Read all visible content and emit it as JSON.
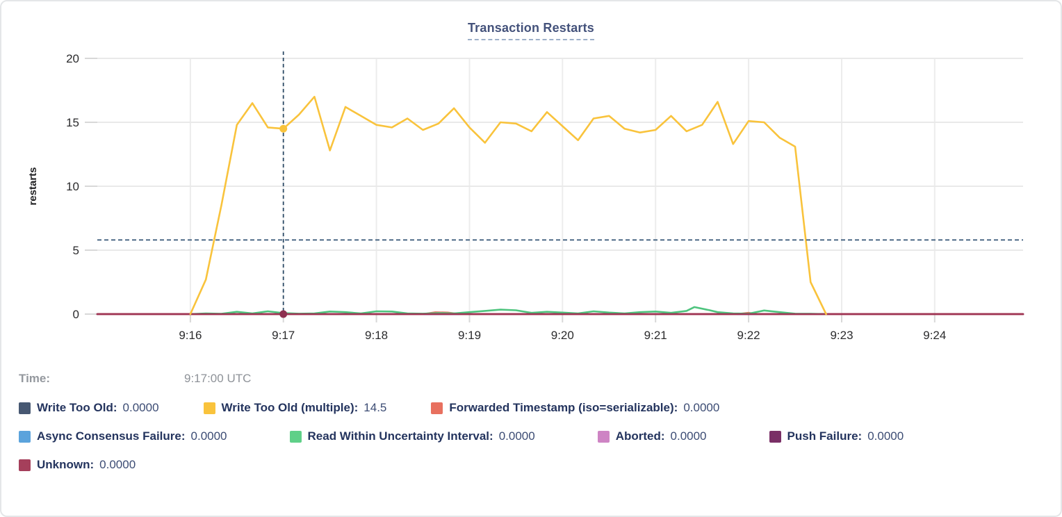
{
  "header": {
    "title": "Transaction Restarts"
  },
  "tooltip": {
    "time_label": "Time:",
    "time_value": "9:17:00 UTC"
  },
  "legend": {
    "rows": [
      [
        {
          "label": "Write Too Old:",
          "value": "0.0000",
          "color": "#475872"
        },
        {
          "label": "Write Too Old (multiple):",
          "value": "14.5",
          "color": "#F9C33C"
        },
        {
          "label": "Forwarded Timestamp (iso=serializable):",
          "value": "0.0000",
          "color": "#E8705F"
        }
      ],
      [
        {
          "label": "Async Consensus Failure:",
          "value": "0.0000",
          "color": "#5BA3DC"
        },
        {
          "label": "Read Within Uncertainty Interval:",
          "value": "0.0000",
          "color": "#5FD088"
        },
        {
          "label": "Aborted:",
          "value": "0.0000",
          "color": "#CE84C4"
        },
        {
          "label": "Push Failure:",
          "value": "0.0000",
          "color": "#7A2F66"
        }
      ],
      [
        {
          "label": "Unknown:",
          "value": "0.0000",
          "color": "#A53F5B"
        }
      ]
    ]
  },
  "chart_data": {
    "type": "line",
    "title": "Transaction Restarts",
    "xlabel": "",
    "ylabel": "restarts",
    "ylim": [
      0,
      20.5
    ],
    "yticks": [
      0,
      5,
      10,
      15,
      20
    ],
    "grid": true,
    "legend_position": "bottom",
    "x_unit": "seconds since 9:15:00 UTC",
    "x_domain_seconds": [
      0,
      597
    ],
    "xticks": [
      {
        "label": "9:16",
        "t": 60
      },
      {
        "label": "9:17",
        "t": 120
      },
      {
        "label": "9:18",
        "t": 180
      },
      {
        "label": "9:19",
        "t": 240
      },
      {
        "label": "9:20",
        "t": 300
      },
      {
        "label": "9:21",
        "t": 360
      },
      {
        "label": "9:22",
        "t": 420
      },
      {
        "label": "9:23",
        "t": 480
      },
      {
        "label": "9:24",
        "t": 540
      }
    ],
    "hover": {
      "time": "9:17:00 UTC",
      "t": 120,
      "crosshair_value": 5.8,
      "points": [
        {
          "series": "Write Too Old (multiple)",
          "value": 14.5,
          "color": "#F9C33C"
        },
        {
          "series": "Unknown",
          "value": 0,
          "color": "#8E3150"
        }
      ]
    },
    "series": [
      {
        "name": "Write Too Old",
        "color": "#475872",
        "points": [
          [
            0,
            0
          ],
          [
            597,
            0
          ]
        ]
      },
      {
        "name": "Async Consensus Failure",
        "color": "#5BA3DC",
        "points": [
          [
            0,
            0
          ],
          [
            597,
            0
          ]
        ]
      },
      {
        "name": "Aborted",
        "color": "#CE84C4",
        "points": [
          [
            0,
            0
          ],
          [
            597,
            0
          ]
        ]
      },
      {
        "name": "Push Failure",
        "color": "#7A2F66",
        "points": [
          [
            0,
            0
          ],
          [
            597,
            0
          ]
        ]
      },
      {
        "name": "Forwarded Timestamp (iso=serializable)",
        "color": "#E8705F",
        "points": [
          [
            0,
            0
          ],
          [
            210,
            0
          ],
          [
            218,
            0.14
          ],
          [
            226,
            0.12
          ],
          [
            234,
            0
          ],
          [
            412,
            0
          ],
          [
            420,
            0.1
          ],
          [
            426,
            0
          ],
          [
            597,
            0
          ]
        ]
      },
      {
        "name": "Read Within Uncertainty Interval",
        "color": "#4EC47E",
        "points": [
          [
            60,
            0
          ],
          [
            70,
            0.05
          ],
          [
            80,
            0.02
          ],
          [
            90,
            0.18
          ],
          [
            100,
            0.05
          ],
          [
            110,
            0.22
          ],
          [
            120,
            0.08
          ],
          [
            130,
            0.03
          ],
          [
            140,
            0.05
          ],
          [
            150,
            0.2
          ],
          [
            160,
            0.15
          ],
          [
            170,
            0.05
          ],
          [
            180,
            0.22
          ],
          [
            190,
            0.2
          ],
          [
            200,
            0.05
          ],
          [
            210,
            0.03
          ],
          [
            220,
            0.08
          ],
          [
            230,
            0.05
          ],
          [
            240,
            0.15
          ],
          [
            250,
            0.25
          ],
          [
            260,
            0.35
          ],
          [
            270,
            0.3
          ],
          [
            280,
            0.1
          ],
          [
            290,
            0.18
          ],
          [
            300,
            0.12
          ],
          [
            310,
            0.05
          ],
          [
            320,
            0.22
          ],
          [
            330,
            0.12
          ],
          [
            340,
            0.05
          ],
          [
            350,
            0.15
          ],
          [
            360,
            0.2
          ],
          [
            370,
            0.1
          ],
          [
            380,
            0.25
          ],
          [
            385,
            0.55
          ],
          [
            395,
            0.3
          ],
          [
            400,
            0.15
          ],
          [
            410,
            0.05
          ],
          [
            420,
            0.03
          ],
          [
            430,
            0.28
          ],
          [
            440,
            0.15
          ],
          [
            450,
            0.03
          ],
          [
            460,
            0.02
          ],
          [
            470,
            0
          ]
        ]
      },
      {
        "name": "Unknown",
        "color": "#9E3352",
        "points": [
          [
            0,
            0
          ],
          [
            597,
            0
          ]
        ]
      },
      {
        "name": "Write Too Old (multiple)",
        "color": "#F9C33C",
        "points": [
          [
            60,
            0
          ],
          [
            70,
            2.7
          ],
          [
            80,
            8.5
          ],
          [
            90,
            14.8
          ],
          [
            100,
            16.5
          ],
          [
            110,
            14.6
          ],
          [
            120,
            14.5
          ],
          [
            130,
            15.6
          ],
          [
            140,
            17.0
          ],
          [
            150,
            12.8
          ],
          [
            160,
            16.2
          ],
          [
            170,
            15.5
          ],
          [
            180,
            14.8
          ],
          [
            190,
            14.6
          ],
          [
            200,
            15.3
          ],
          [
            210,
            14.4
          ],
          [
            220,
            14.9
          ],
          [
            230,
            16.1
          ],
          [
            240,
            14.6
          ],
          [
            250,
            13.4
          ],
          [
            260,
            15.0
          ],
          [
            270,
            14.9
          ],
          [
            280,
            14.3
          ],
          [
            290,
            15.8
          ],
          [
            300,
            14.7
          ],
          [
            310,
            13.6
          ],
          [
            320,
            15.3
          ],
          [
            330,
            15.5
          ],
          [
            340,
            14.5
          ],
          [
            350,
            14.2
          ],
          [
            360,
            14.4
          ],
          [
            370,
            15.5
          ],
          [
            380,
            14.3
          ],
          [
            390,
            14.8
          ],
          [
            400,
            16.6
          ],
          [
            410,
            13.3
          ],
          [
            420,
            15.1
          ],
          [
            430,
            15.0
          ],
          [
            440,
            13.8
          ],
          [
            450,
            13.1
          ],
          [
            460,
            2.5
          ],
          [
            470,
            0
          ]
        ]
      }
    ],
    "colors": {
      "crosshair": "#41607F",
      "gridline": "#e9e9e9",
      "tick_stub": "#d8d8d8",
      "hover_dot_top": "#F9C33C",
      "hover_dot_bottom": "#8E3150"
    }
  }
}
